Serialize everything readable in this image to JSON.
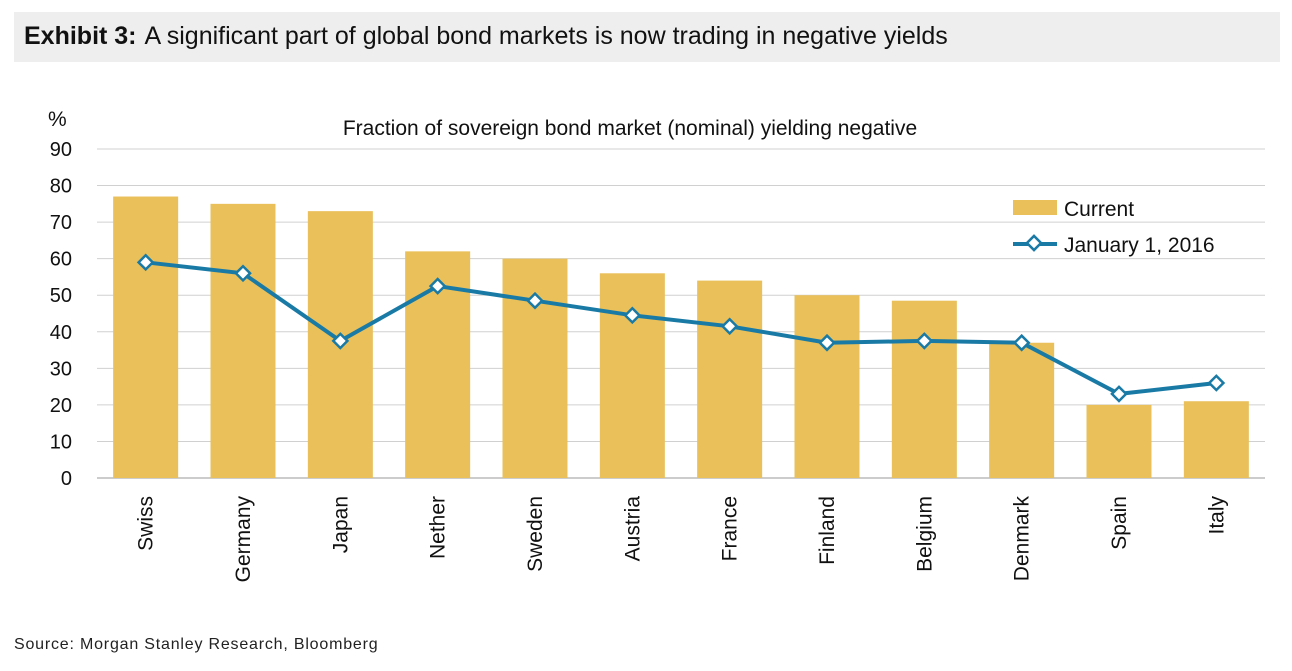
{
  "header": {
    "exhibit_label": "Exhibit 3:",
    "title": "A significant part of global bond markets is now trading in negative yields"
  },
  "source": "Source: Morgan Stanley Research, Bloomberg",
  "colors": {
    "bar": "#e9c05a",
    "line": "#1a7aa6",
    "grid": "#d0d0d0"
  },
  "chart_data": {
    "type": "bar",
    "title": "Fraction of sovereign bond market (nominal) yielding negative",
    "ylabel": "%",
    "xlabel": "",
    "ylim": [
      0,
      90
    ],
    "yticks": [
      0,
      10,
      20,
      30,
      40,
      50,
      60,
      70,
      80,
      90
    ],
    "grid": true,
    "legend_position": "top-right",
    "categories": [
      "Swiss",
      "Germany",
      "Japan",
      "Nether",
      "Sweden",
      "Austria",
      "France",
      "Finland",
      "Belgium",
      "Denmark",
      "Spain",
      "Italy"
    ],
    "series": [
      {
        "name": "Current",
        "type": "bar",
        "values": [
          77,
          75,
          73,
          62,
          60,
          56,
          54,
          50,
          48.5,
          37,
          20,
          21
        ]
      },
      {
        "name": "January 1, 2016",
        "type": "line",
        "values": [
          59,
          56,
          37.5,
          52.5,
          48.5,
          44.5,
          41.5,
          37,
          37.5,
          37,
          23,
          26
        ]
      }
    ]
  }
}
